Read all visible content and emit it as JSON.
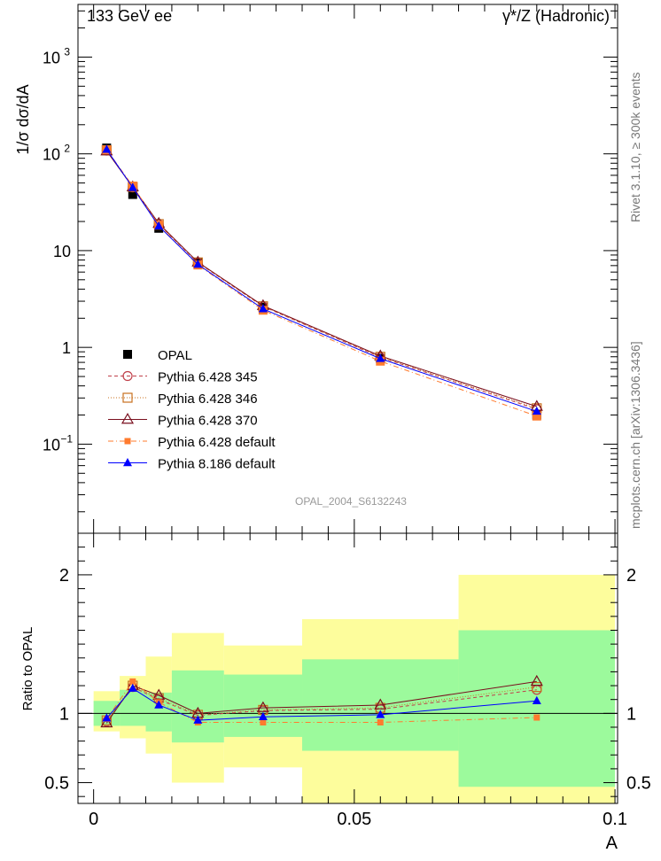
{
  "header": {
    "energy_label": "133 GeV ee",
    "process_label": "γ*/Z (Hadronic)"
  },
  "side_text": {
    "rivet": "Rivet 3.1.10, ≥ 300k events",
    "mcplots": "mcplots.cern.ch [arXiv:1306.3436]"
  },
  "analysis_label": "OPAL_2004_S6132243",
  "colors": {
    "opal": "#000000",
    "p345": "#c0404a",
    "p346": "#c8701e",
    "p370": "#7a0f1e",
    "pdefault": "#ff7b2e",
    "p8186": "#0000ff",
    "band_inner": "#9cfa9c",
    "band_outer": "#fdfd9c"
  },
  "chart_data": [
    {
      "type": "line",
      "panel": "main",
      "ylabel": "1/σ dσ/dA",
      "xlabel": "A",
      "yscale": "log",
      "ylim": [
        0.012,
        3500
      ],
      "xlim": [
        -0.003,
        0.1005
      ],
      "ytick_labels": [
        "10^-1",
        "1",
        "10",
        "10^2",
        "10^3"
      ],
      "x": [
        0.0025,
        0.0075,
        0.0125,
        0.02,
        0.0325,
        0.055,
        0.085
      ],
      "legend_position": "lower-left",
      "series": [
        {
          "name": "OPAL",
          "values": [
            115,
            38,
            17,
            7.6,
            2.6,
            0.77,
            0.2
          ]
        },
        {
          "name": "Pythia 6.428 345",
          "values": [
            108,
            45,
            18.7,
            7.5,
            2.65,
            0.79,
            0.23
          ]
        },
        {
          "name": "Pythia 6.428 346",
          "values": [
            109,
            45.5,
            18.8,
            7.55,
            2.66,
            0.8,
            0.235
          ]
        },
        {
          "name": "Pythia 6.428 370",
          "values": [
            107,
            45.5,
            19.1,
            7.6,
            2.7,
            0.815,
            0.245
          ]
        },
        {
          "name": "Pythia 6.428 default",
          "values": [
            110,
            46.5,
            18.3,
            7.1,
            2.42,
            0.72,
            0.195
          ]
        },
        {
          "name": "Pythia 8.186 default",
          "values": [
            111,
            44.8,
            17.9,
            7.2,
            2.5,
            0.765,
            0.218
          ]
        }
      ]
    },
    {
      "type": "line",
      "panel": "ratio",
      "ylabel": "Ratio to OPAL",
      "xlabel": "A",
      "ylim": [
        0.35,
        2.3
      ],
      "xlim": [
        -0.003,
        0.1005
      ],
      "ytick_labels": [
        "0.5",
        "1",
        "2"
      ],
      "xtick_labels": [
        "0",
        "0.05",
        "0.1"
      ],
      "x": [
        0.0025,
        0.0075,
        0.0125,
        0.02,
        0.0325,
        0.055,
        0.085
      ],
      "bands": {
        "edges": [
          0,
          0.005,
          0.01,
          0.015,
          0.025,
          0.04,
          0.07,
          0.1
        ],
        "inner": [
          [
            0.91,
            1.09
          ],
          [
            0.91,
            1.17
          ],
          [
            0.87,
            1.15
          ],
          [
            0.79,
            1.31
          ],
          [
            0.83,
            1.28
          ],
          [
            0.73,
            1.39
          ],
          [
            0.47,
            1.6
          ]
        ],
        "outer": [
          [
            0.87,
            1.16
          ],
          [
            0.82,
            1.27
          ],
          [
            0.71,
            1.41
          ],
          [
            0.5,
            1.58
          ],
          [
            0.61,
            1.49
          ],
          [
            0.35,
            1.68
          ],
          [
            0.35,
            2.0
          ]
        ]
      },
      "series": [
        {
          "name": "Pythia 6.428 345",
          "values": [
            0.94,
            1.19,
            1.1,
            0.985,
            1.02,
            1.03,
            1.17
          ]
        },
        {
          "name": "Pythia 6.428 346",
          "values": [
            0.95,
            1.2,
            1.11,
            0.99,
            1.025,
            1.04,
            1.19
          ]
        },
        {
          "name": "Pythia 6.428 370",
          "values": [
            0.93,
            1.2,
            1.13,
            1.0,
            1.04,
            1.06,
            1.23
          ]
        },
        {
          "name": "Pythia 6.428 default",
          "values": [
            0.96,
            1.23,
            1.08,
            0.935,
            0.935,
            0.935,
            0.97
          ]
        },
        {
          "name": "Pythia 8.186 default",
          "values": [
            0.965,
            1.18,
            1.06,
            0.95,
            0.975,
            0.99,
            1.09
          ]
        }
      ]
    }
  ]
}
